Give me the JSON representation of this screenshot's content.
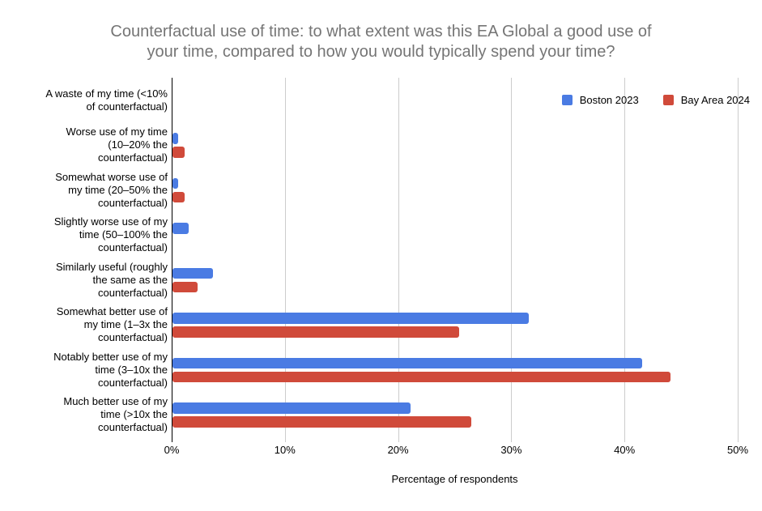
{
  "title": "Counterfactual use of time: to what extent was this EA Global a good use of\nyour time, compared to how you would typically spend your time?",
  "chart_data": {
    "type": "bar",
    "orientation": "horizontal",
    "title": "Counterfactual use of time: to what extent was this EA Global a good use of your time, compared to how you would typically spend your time?",
    "xlabel": "Percentage of respondents",
    "ylabel": "",
    "xlim": [
      0,
      50
    ],
    "x_ticks": [
      "0%",
      "10%",
      "20%",
      "30%",
      "40%",
      "50%"
    ],
    "x_tick_values": [
      0,
      10,
      20,
      30,
      40,
      50
    ],
    "grid": "vertical",
    "legend_position": "top-right-inside",
    "grid_color": "#cccccc",
    "axis_color": "#000000",
    "title_color": "#757575",
    "categories": [
      "A waste of my time (<10%\nof counterfactual)",
      "Worse use of my time\n(10–20% the\ncounterfactual)",
      "Somewhat worse use of\nmy time (20–50% the\ncounterfactual)",
      "Slightly worse use of my\ntime (50–100% the\ncounterfactual)",
      "Similarly useful (roughly\nthe same as the\ncounterfactual)",
      "Somewhat better use of\nmy time (1–3x the\ncounterfactual)",
      "Notably better use of my\ntime (3–10x the\ncounterfactual)",
      "Much better use of my\ntime (>10x the\ncounterfactual)"
    ],
    "series": [
      {
        "name": "Boston 2023",
        "color": "#4a7be3",
        "values": [
          0,
          0.5,
          0.5,
          1.4,
          3.6,
          31.5,
          41.5,
          21.0
        ]
      },
      {
        "name": "Bay Area 2024",
        "color": "#d04a3a",
        "values": [
          0,
          1.1,
          1.1,
          0,
          2.2,
          25.3,
          44.0,
          26.4
        ]
      }
    ]
  }
}
